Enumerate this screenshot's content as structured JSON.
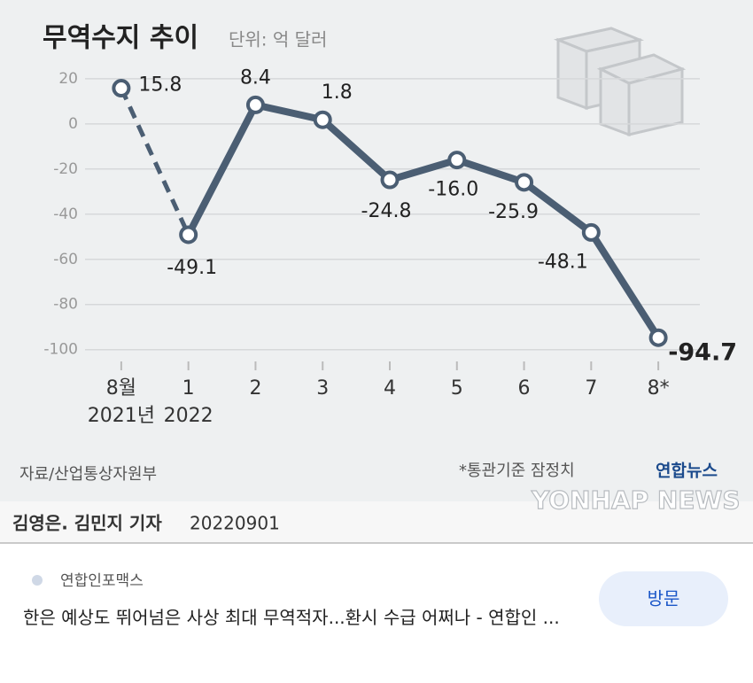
{
  "chart_data": {
    "type": "line",
    "title": "무역수지 추이",
    "subtitle": "단위: 억 달러",
    "categories": [
      "8월",
      "1",
      "2",
      "3",
      "4",
      "5",
      "6",
      "7",
      "8*"
    ],
    "year_labels": [
      "2021년",
      "2022",
      null,
      null,
      null,
      null,
      null,
      null,
      null
    ],
    "values": [
      15.8,
      -49.1,
      8.4,
      1.8,
      -24.8,
      -16.0,
      -25.9,
      -48.1,
      -94.7
    ],
    "value_labels": [
      "15.8",
      "-49.1",
      "8.4",
      "1.8",
      "-24.8",
      "-16.0",
      "-25.9",
      "-48.1",
      "-94.7"
    ],
    "color": "#4b5e73",
    "dashed_first_segment": true,
    "ylim": [
      -106,
      27
    ],
    "yticks": [
      20,
      0,
      -20,
      -40,
      -60,
      -80,
      -100
    ],
    "grid": true,
    "source": "자료/산업통상자원부",
    "note": "*통관기준 잠정치",
    "logo": "연합뉴스",
    "watermark": "YONHAP NEWS",
    "byline": "김영은. 김민지 기자",
    "date": "20220901"
  },
  "result": {
    "site": "연합인포맥스",
    "headline": "한은 예상도 뛰어넘은 사상 최대 무역적자...환시 수급 어쩌나 - 연합인 ...",
    "button": "방문"
  }
}
